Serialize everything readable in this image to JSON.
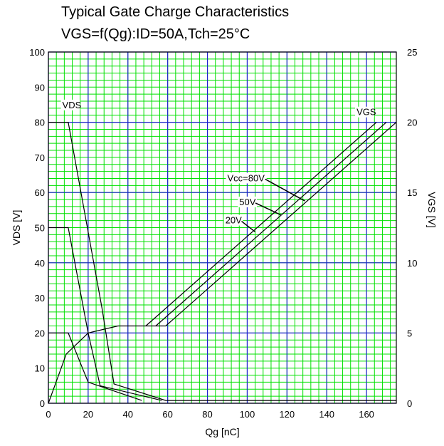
{
  "chart_data": {
    "type": "line",
    "title": "Typical Gate Charge Characteristics",
    "subtitle": "VGS=f(Qg):ID=50A,Tch=25°C",
    "xlabel": "Qg [nC]",
    "ylabel": "VDS [V]",
    "y2label": "VGS [V]",
    "xlim": [
      0,
      175
    ],
    "ylim": [
      0,
      100
    ],
    "y2lim": [
      0,
      25
    ],
    "xticks": [
      0,
      20,
      40,
      60,
      80,
      100,
      120,
      140,
      160
    ],
    "yticks": [
      0,
      10,
      20,
      30,
      40,
      50,
      60,
      70,
      80,
      90,
      100
    ],
    "y2ticks": [
      0,
      5,
      10,
      15,
      20,
      25
    ],
    "grid": true,
    "minor_grid_color": "#00e000",
    "major_grid_color": "#2020d0",
    "series": [
      {
        "axis": "left",
        "points": [
          [
            0,
            80
          ],
          [
            10,
            80
          ],
          [
            27,
            27
          ],
          [
            33,
            5.5
          ],
          [
            59,
            0.8
          ],
          [
            175,
            0.8
          ]
        ]
      },
      {
        "axis": "left",
        "points": [
          [
            0,
            50
          ],
          [
            10,
            50
          ],
          [
            20,
            20
          ],
          [
            26,
            5
          ],
          [
            57,
            0.8
          ]
        ]
      },
      {
        "axis": "left",
        "points": [
          [
            0,
            20
          ],
          [
            10,
            20
          ],
          [
            20,
            6
          ],
          [
            47,
            0.8
          ]
        ]
      },
      {
        "axis": "right",
        "points": [
          [
            0,
            0
          ],
          [
            9,
            3.5
          ],
          [
            20,
            5
          ],
          [
            35,
            5.5
          ],
          [
            59,
            5.5
          ],
          [
            175,
            20
          ]
        ]
      },
      {
        "axis": "right",
        "points": [
          [
            54,
            5.5
          ],
          [
            170,
            20
          ]
        ]
      },
      {
        "axis": "right",
        "points": [
          [
            49,
            5.5
          ],
          [
            165,
            20
          ]
        ]
      }
    ],
    "annotations": [
      {
        "text": "VDS",
        "x": 7,
        "y": 84,
        "axis": "left"
      },
      {
        "text": "VGS",
        "x": 155,
        "y": 20.5,
        "axis": "right"
      },
      {
        "text": "Vcc=80V",
        "x": 90,
        "y": 15.8,
        "axis": "right",
        "arrow_to": [
          129,
          14.4
        ]
      },
      {
        "text": "50V",
        "x": 96,
        "y": 14.1,
        "axis": "right",
        "arrow_to": [
          117,
          13.4
        ]
      },
      {
        "text": "20V",
        "x": 89,
        "y": 12.8,
        "axis": "right",
        "arrow_to": [
          104,
          12.2
        ]
      }
    ]
  }
}
